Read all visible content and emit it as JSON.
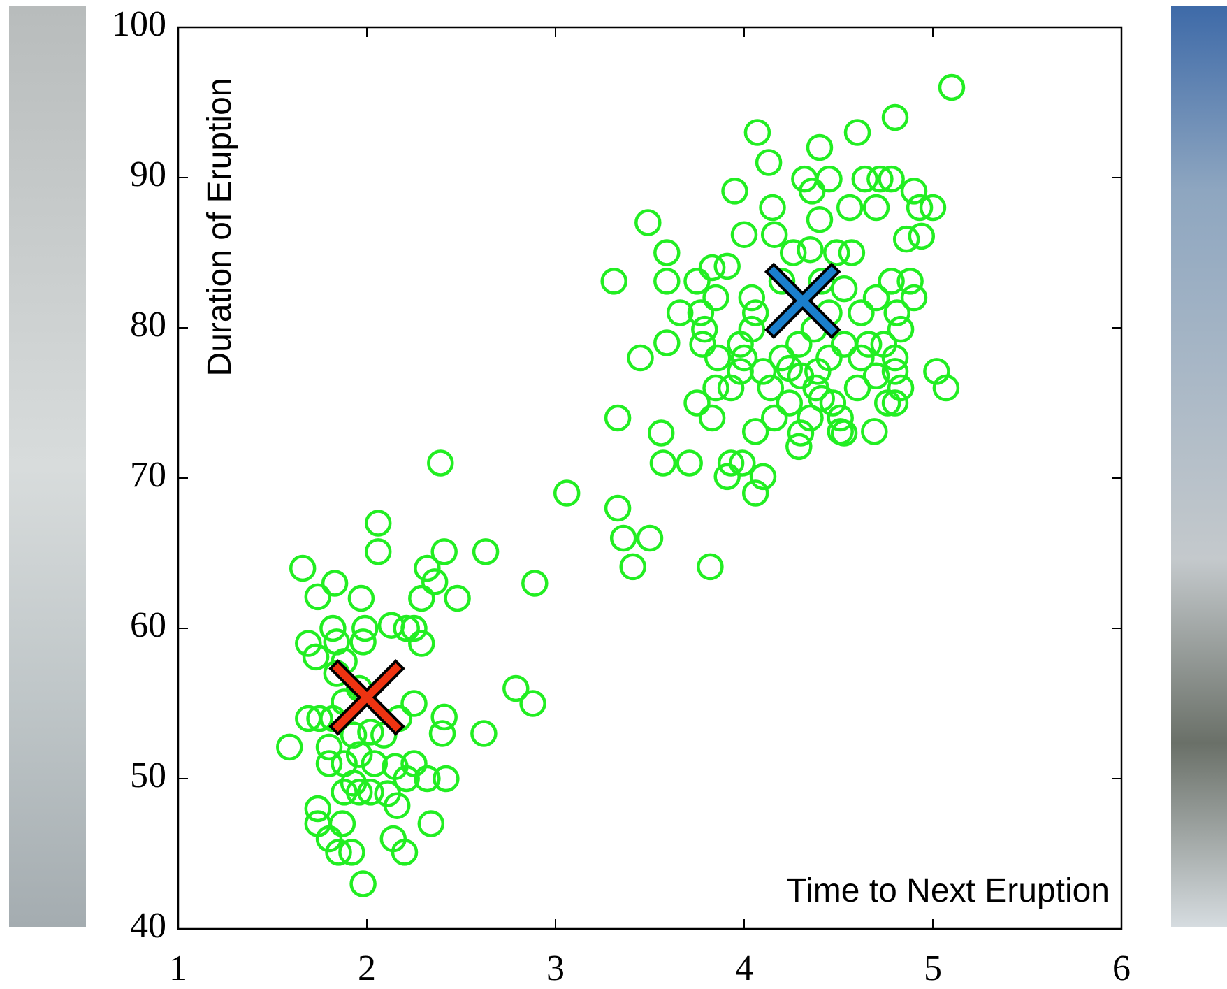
{
  "chart_data": {
    "type": "scatter",
    "x_label": "Time to Next Eruption",
    "y_label": "Duration of Eruption",
    "xlim": [
      1,
      6
    ],
    "ylim": [
      40,
      100
    ],
    "xticks": [
      1,
      2,
      3,
      4,
      5,
      6
    ],
    "yticks": [
      40,
      50,
      60,
      70,
      80,
      90,
      100
    ],
    "series": [
      {
        "color": "#22ee22",
        "marker": "circle",
        "x": [
          1.66,
          1.59,
          1.74,
          1.83,
          1.69,
          1.73,
          1.82,
          1.84,
          1.97,
          2.06,
          2.06,
          1.88,
          1.99,
          2.13,
          2.21,
          2.25,
          2.29,
          1.98,
          2.32,
          2.36,
          2.41,
          2.39,
          2.29,
          2.48,
          2.63,
          2.62,
          2.89,
          2.79,
          2.88,
          2.25,
          2.17,
          2.41,
          2.4,
          2.42,
          2.32,
          2.25,
          2.21,
          2.34,
          2.16,
          2.14,
          2.2,
          1.98,
          1.92,
          1.85,
          1.8,
          1.74,
          1.74,
          1.87,
          1.88,
          1.96,
          2.02,
          2.11,
          1.8,
          1.88,
          1.96,
          2.04,
          1.8,
          1.93,
          2.02,
          1.69,
          1.75,
          1.82,
          1.88,
          1.96,
          2.09,
          1.93,
          1.84,
          2.15,
          3.06,
          3.33,
          3.36,
          3.41,
          3.5,
          3.82,
          3.33,
          3.56,
          3.57,
          3.71,
          3.31,
          3.49,
          3.59,
          3.59,
          3.45,
          3.59,
          3.66,
          3.75,
          3.83,
          3.91,
          3.95,
          4.07,
          4.13,
          4.15,
          4.0,
          4.16,
          4.32,
          4.4,
          4.45,
          4.36,
          4.4,
          4.35,
          4.6,
          4.8,
          5.1,
          4.56,
          4.7,
          4.64,
          4.72,
          4.78,
          4.9,
          4.93,
          5.0,
          4.94,
          4.86,
          5.02,
          5.07,
          4.69,
          4.53,
          4.29,
          4.3,
          4.06,
          4.1,
          3.91,
          3.99,
          3.93,
          4.06,
          3.75,
          3.83,
          3.85,
          3.93,
          3.98,
          3.86,
          3.78,
          3.79,
          3.77,
          3.85,
          4.04,
          4.04,
          4.06,
          4.2,
          4.26,
          4.49,
          4.57,
          4.41,
          4.53,
          4.62,
          4.7,
          4.78,
          4.88,
          4.9,
          4.81,
          4.83,
          4.74,
          4.8,
          4.8,
          4.83,
          4.76,
          4.8,
          4.7,
          4.62,
          4.53,
          4.45,
          4.39,
          4.38,
          4.24,
          4.16,
          4.14,
          4.1,
          4.2,
          4.29,
          4.37,
          4.45,
          4.0,
          3.98,
          4.35,
          4.47,
          4.51,
          4.51,
          4.6,
          4.66,
          4.24,
          4.3,
          4.41
        ],
        "values": [
          64,
          52.1,
          62.1,
          63,
          59,
          58.1,
          60,
          59.1,
          62,
          67,
          65.1,
          57.8,
          60,
          60.2,
          60,
          60,
          59,
          59.1,
          64,
          63.1,
          65.1,
          71,
          62,
          62,
          65.1,
          53,
          63,
          56,
          55,
          55,
          54,
          54.1,
          53,
          50,
          50,
          51,
          50,
          47,
          48.2,
          46,
          45.1,
          43,
          45.1,
          45.1,
          46,
          48,
          47,
          47,
          49.1,
          49.1,
          49.1,
          49,
          51,
          51,
          51.6,
          51,
          52.1,
          52.9,
          53.1,
          54,
          54,
          54,
          55.1,
          56,
          52.9,
          49.7,
          57,
          50.8,
          69,
          68,
          66,
          64.1,
          66,
          64.1,
          74,
          73,
          71,
          71,
          83.1,
          87,
          85,
          83.1,
          78,
          79,
          81,
          83.1,
          84,
          84.1,
          89.1,
          93,
          91,
          88,
          86.2,
          86.2,
          89.9,
          92,
          89.9,
          89.1,
          87.2,
          85.2,
          93,
          94,
          96,
          88,
          88,
          89.9,
          89.9,
          89.9,
          89.1,
          88,
          88,
          86.1,
          85.9,
          77.1,
          76,
          73.1,
          73,
          72.1,
          73,
          69,
          70.1,
          70.1,
          71,
          71,
          73.1,
          75,
          74,
          76,
          76,
          77.1,
          78,
          78.9,
          79.9,
          81,
          82,
          82,
          79.9,
          81,
          83.1,
          85,
          85,
          85,
          83.1,
          82.6,
          81,
          82,
          83.1,
          83.1,
          82,
          81,
          79.9,
          78.9,
          78,
          77.1,
          76,
          75,
          75,
          76.8,
          78,
          78.9,
          78,
          77.1,
          76,
          75,
          74,
          76,
          77.1,
          78,
          78.9,
          79.9,
          81,
          78,
          78.9,
          74,
          75,
          74,
          73.1,
          76,
          78.9,
          77.3,
          76.8,
          75.3
        ]
      },
      {
        "color": "#ee3311",
        "marker": "cross",
        "x": [
          2.0
        ],
        "values": [
          55.4
        ]
      },
      {
        "color": "#1a7fcc",
        "marker": "cross",
        "x": [
          4.31
        ],
        "values": [
          81.8
        ]
      }
    ]
  }
}
